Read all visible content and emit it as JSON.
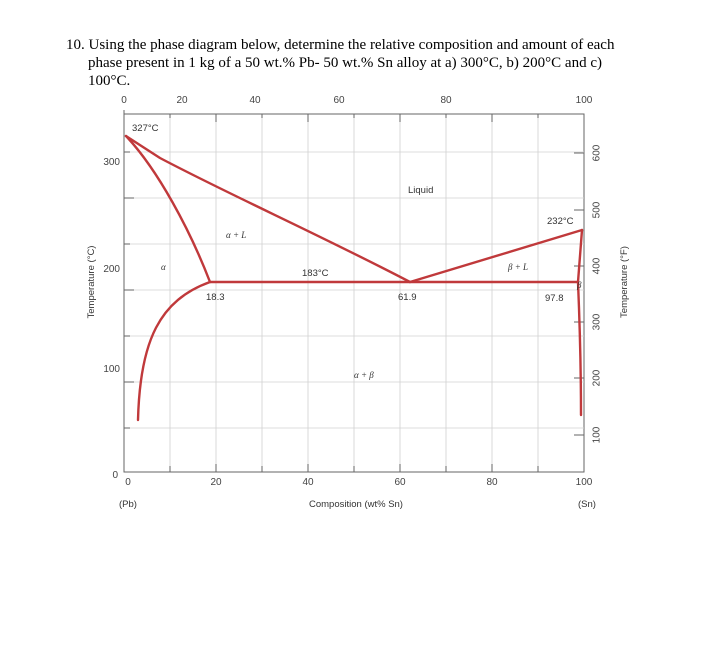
{
  "question": {
    "line1": "10. Using the phase diagram below, determine the relative composition and amount of each",
    "line2": "phase present in 1 kg of a 50 wt.% Pb- 50 wt.% Sn alloy at a) 300°C, b) 200°C and c)",
    "line3": "100°C."
  },
  "diagram": {
    "top_ticks": [
      "0",
      "20",
      "40",
      "60",
      "80",
      "100"
    ],
    "bottom_ticks": [
      "0",
      "20",
      "40",
      "60",
      "80",
      "100"
    ],
    "left_ticks": [
      "0",
      "100",
      "200",
      "300"
    ],
    "right_ticks": [
      "100",
      "200",
      "300",
      "400",
      "500",
      "600"
    ],
    "x_axis_title": "Composition (wt% Sn)",
    "y_left_title": "Temperature (°C)",
    "y_right_title": "Temperature (°F)",
    "pb_label": "(Pb)",
    "sn_label": "(Sn)",
    "temp_327": "327°C",
    "temp_232": "232°C",
    "temp_183": "183°C",
    "comp_183": "18.3",
    "comp_619": "61.9",
    "comp_978": "97.8",
    "liquid": "Liquid",
    "alpha": "α",
    "alpha_l": "α + L",
    "beta_l": "β + L",
    "beta": "β",
    "alpha_beta": "α + β",
    "line_color": "#c0393b"
  }
}
